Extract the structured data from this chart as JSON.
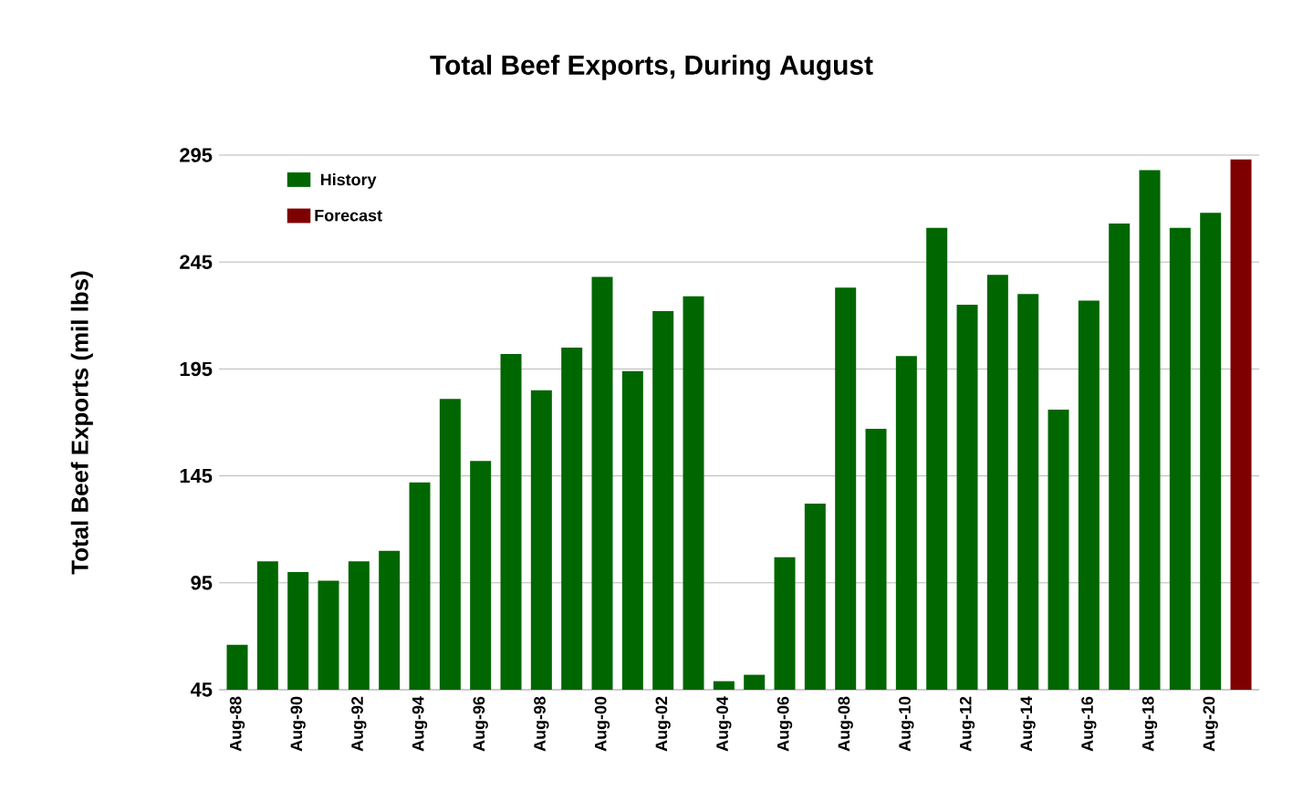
{
  "chart_data": {
    "type": "bar",
    "title": "Total Beef Exports, During August",
    "ylabel": "Total Beef Exports (mil lbs)",
    "categories": [
      "Aug-88",
      null,
      "Aug-90",
      null,
      "Aug-92",
      null,
      "Aug-94",
      null,
      "Aug-96",
      null,
      "Aug-98",
      null,
      "Aug-00",
      null,
      "Aug-02",
      null,
      "Aug-04",
      null,
      "Aug-06",
      null,
      "Aug-08",
      null,
      "Aug-10",
      null,
      "Aug-12",
      null,
      "Aug-14",
      null,
      "Aug-16",
      null,
      "Aug-18",
      null,
      "Aug-20",
      null
    ],
    "series": [
      {
        "name": "History",
        "color": "#006600",
        "values": [
          66,
          105,
          100,
          96,
          105,
          110,
          142,
          181,
          152,
          202,
          185,
          205,
          238,
          194,
          222,
          229,
          49,
          52,
          107,
          132,
          233,
          167,
          201,
          261,
          225,
          239,
          230,
          176,
          227,
          263,
          288,
          261,
          268,
          null
        ]
      },
      {
        "name": "Forecast",
        "color": "#7f0000",
        "values": [
          null,
          null,
          null,
          null,
          null,
          null,
          null,
          null,
          null,
          null,
          null,
          null,
          null,
          null,
          null,
          null,
          null,
          null,
          null,
          null,
          null,
          null,
          null,
          null,
          null,
          null,
          null,
          null,
          null,
          null,
          null,
          null,
          null,
          293
        ]
      }
    ],
    "ylim": [
      45,
      295
    ],
    "yticks": [
      45,
      95,
      145,
      195,
      245,
      295
    ],
    "grid": "y",
    "legend": "top left"
  }
}
